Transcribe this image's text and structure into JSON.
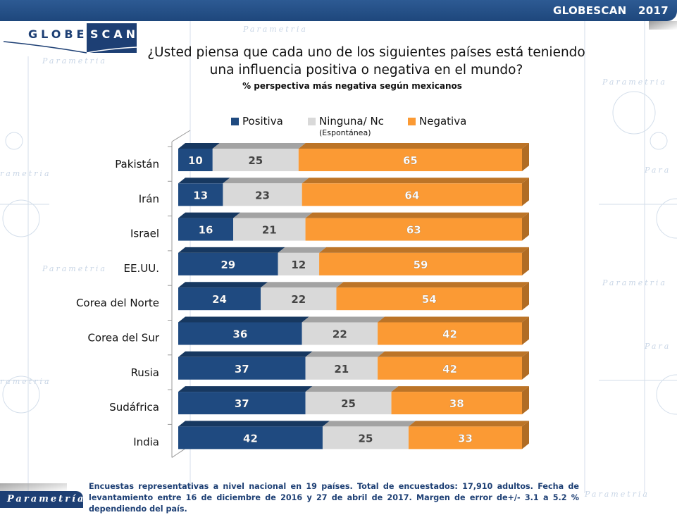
{
  "header": {
    "brand_title": "GLOBESCAN   2017",
    "logo_left": "GLOBE",
    "logo_right": "SCAN"
  },
  "title_line1": "¿Usted piensa que cada uno de los siguientes países está teniendo",
  "title_line2": "una influencia positiva o negativa en el mundo?",
  "subtitle": "% perspectiva más negativa según mexicanos",
  "legend": [
    {
      "label": "Positiva",
      "color": "#1f4a80"
    },
    {
      "label": "Ninguna/ Nc",
      "sublabel": "(Espontánea)",
      "color": "#d9d9d9"
    },
    {
      "label": "Negativa",
      "color": "#fb9a34"
    }
  ],
  "watermark": "Parametría",
  "chart_data": {
    "type": "bar",
    "orientation": "horizontal",
    "stacked": true,
    "style": "3d",
    "title": "¿Usted piensa que cada uno de los siguientes países está teniendo una influencia positiva o negativa en el mundo?",
    "subtitle": "% perspectiva más negativa según mexicanos",
    "xlim": [
      0,
      100
    ],
    "grid": false,
    "legend_position": "top",
    "categories": [
      "Pakistán",
      "Irán",
      "Israel",
      "EE.UU.",
      "Corea del Norte",
      "Corea del Sur",
      "Rusia",
      "Sudáfrica",
      "India"
    ],
    "series": [
      {
        "name": "Positiva",
        "color": "#1f4a80",
        "label_color": "#ffffff",
        "values": [
          10,
          13,
          16,
          29,
          24,
          36,
          37,
          37,
          42
        ]
      },
      {
        "name": "Ninguna/ Nc (Espontánea)",
        "color": "#d9d9d9",
        "label_color": "#444444",
        "values": [
          25,
          23,
          21,
          12,
          22,
          22,
          21,
          25,
          25
        ]
      },
      {
        "name": "Negativa",
        "color": "#fb9a34",
        "label_color": "#ffffff",
        "values": [
          65,
          64,
          63,
          59,
          54,
          42,
          42,
          38,
          33
        ]
      }
    ]
  },
  "footer": {
    "logo": "Parametría",
    "note": "Encuestas representativas a nivel nacional en 19 países. Total de encuestados: 17,910 adultos. Fecha de levantamiento entre 16 de diciembre de 2016 y 27 de abril de 2017. Margen de error de+/- 3.1 a 5.2 % dependiendo del país."
  }
}
